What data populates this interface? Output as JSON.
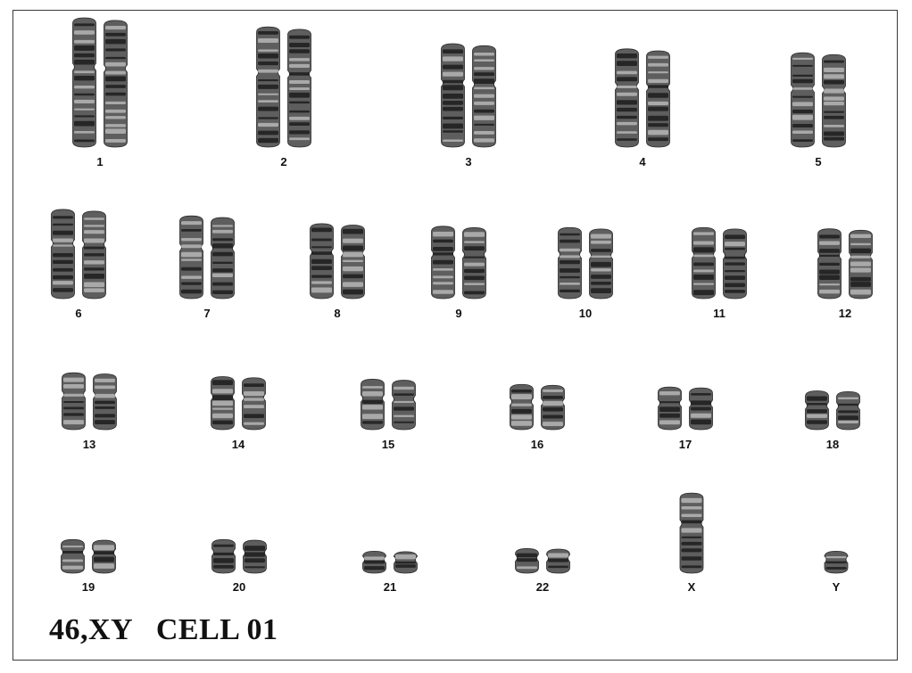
{
  "caption": "46,XY   CELL 01",
  "colors": {
    "chromosome": "#5e5e5e",
    "band_dark": "#1c1c1c",
    "band_light": "#c9c9c9",
    "border": "#3a3a3a"
  },
  "karyotype": [
    {
      "label": "1",
      "size": 1.0,
      "count": 2
    },
    {
      "label": "2",
      "size": 0.93,
      "count": 2
    },
    {
      "label": "3",
      "size": 0.8,
      "count": 2
    },
    {
      "label": "4",
      "size": 0.76,
      "count": 2
    },
    {
      "label": "5",
      "size": 0.73,
      "count": 2
    },
    {
      "label": "6",
      "size": 0.69,
      "count": 2
    },
    {
      "label": "7",
      "size": 0.64,
      "count": 2
    },
    {
      "label": "8",
      "size": 0.58,
      "count": 2
    },
    {
      "label": "9",
      "size": 0.56,
      "count": 2
    },
    {
      "label": "10",
      "size": 0.55,
      "count": 2
    },
    {
      "label": "11",
      "size": 0.55,
      "count": 2
    },
    {
      "label": "12",
      "size": 0.54,
      "count": 2
    },
    {
      "label": "13",
      "size": 0.44,
      "count": 2
    },
    {
      "label": "14",
      "size": 0.41,
      "count": 2
    },
    {
      "label": "15",
      "size": 0.39,
      "count": 2
    },
    {
      "label": "16",
      "size": 0.35,
      "count": 2
    },
    {
      "label": "17",
      "size": 0.33,
      "count": 2
    },
    {
      "label": "18",
      "size": 0.3,
      "count": 2
    },
    {
      "label": "19",
      "size": 0.26,
      "count": 2
    },
    {
      "label": "20",
      "size": 0.26,
      "count": 2
    },
    {
      "label": "21",
      "size": 0.17,
      "count": 2
    },
    {
      "label": "22",
      "size": 0.19,
      "count": 2
    },
    {
      "label": "X",
      "size": 0.62,
      "count": 1
    },
    {
      "label": "Y",
      "size": 0.17,
      "count": 1
    }
  ]
}
